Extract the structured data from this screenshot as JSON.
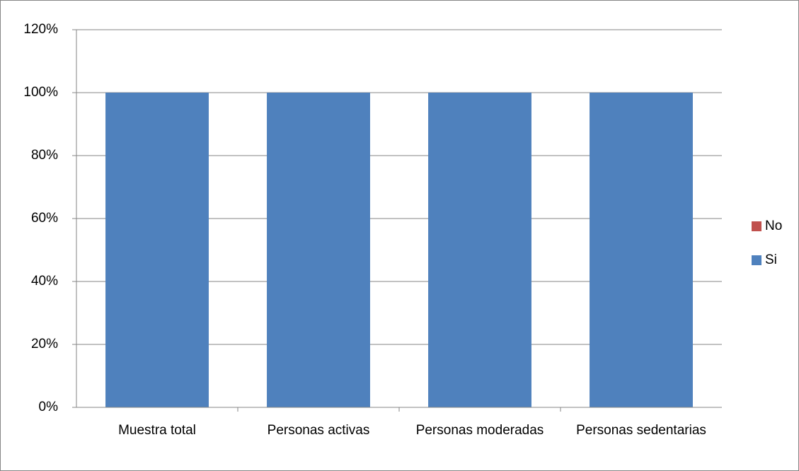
{
  "chart_data": {
    "type": "stacked_bar",
    "categories": [
      "Muestra total",
      "Personas activas",
      "Personas moderadas",
      "Personas sedentarias"
    ],
    "series": [
      {
        "name": "Si",
        "color": "#4f81bd",
        "values": [
          100,
          100,
          100,
          100
        ]
      },
      {
        "name": "No",
        "color": "#c0504d",
        "values": [
          0,
          0,
          0,
          0
        ]
      }
    ],
    "ylim": [
      0,
      120
    ],
    "yticks": [
      {
        "value": 0,
        "label": "0%"
      },
      {
        "value": 20,
        "label": "20%"
      },
      {
        "value": 40,
        "label": "40%"
      },
      {
        "value": 60,
        "label": "60%"
      },
      {
        "value": 80,
        "label": "80%"
      },
      {
        "value": 100,
        "label": "100%"
      },
      {
        "value": 120,
        "label": "120%"
      }
    ],
    "grid": true,
    "legend": "right"
  }
}
